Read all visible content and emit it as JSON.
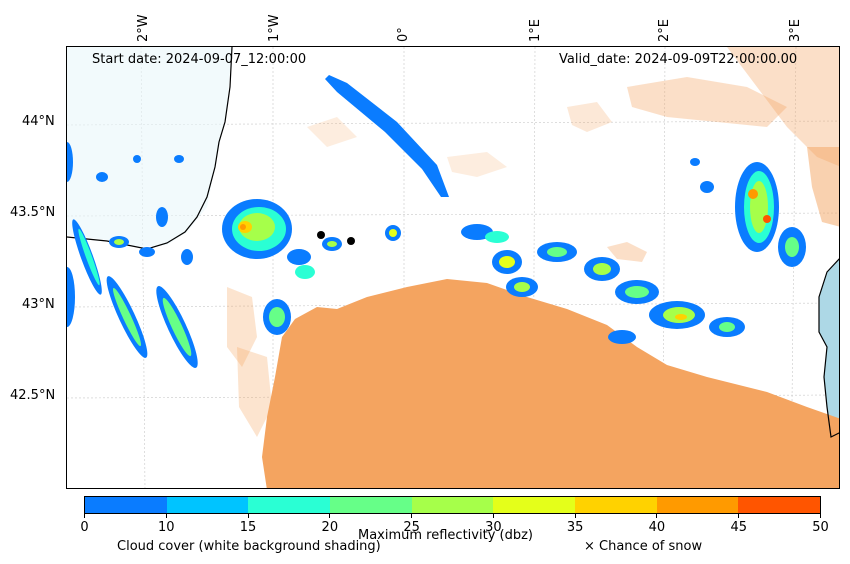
{
  "header": {
    "start_date": "Start date: 2024-09-07_12:00:00",
    "valid_date": "Valid_date: 2024-09-09T22:00:00.00"
  },
  "axes": {
    "longitude_labels": [
      "2°W",
      "1°W",
      "0°",
      "1°E",
      "2°E",
      "3°E"
    ],
    "latitude_labels": [
      "44°N",
      "43.5°N",
      "43°N",
      "42.5°N"
    ]
  },
  "colorbar": {
    "label": "Maximum reflectivity (dbz)",
    "ticks": [
      "0",
      "10",
      "15",
      "20",
      "25",
      "30",
      "35",
      "40",
      "45",
      "50"
    ],
    "colors": [
      "#0a7cff",
      "#00c4ff",
      "#2affd4",
      "#66ff88",
      "#a6ff4a",
      "#e4ff1a",
      "#ffd200",
      "#ff9a00",
      "#ff5500"
    ]
  },
  "legend": {
    "cloud_cover": "Cloud cover (white background shading)",
    "snow": "× Chance of snow"
  },
  "map_colors": {
    "cloud_shade": "#f4a460",
    "sea": "#add8e6",
    "coast": "#000000",
    "grid": "#c8c8c8"
  }
}
